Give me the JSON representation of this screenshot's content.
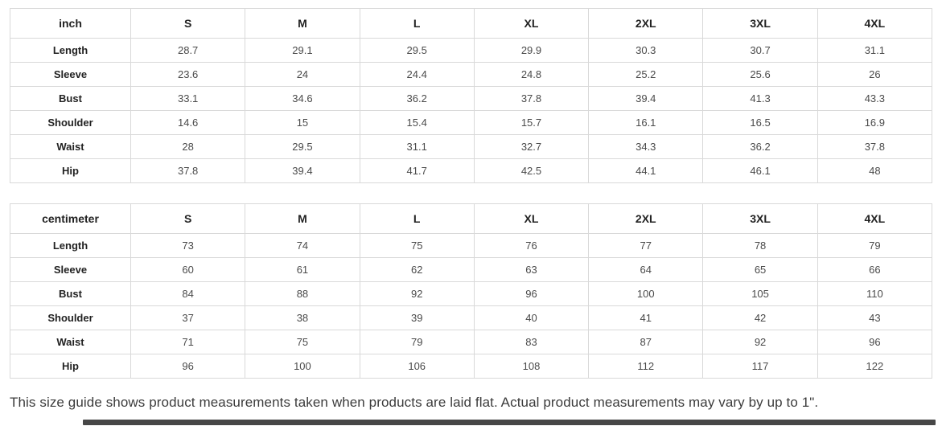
{
  "tables": [
    {
      "unit_label": "inch",
      "size_headers": [
        "S",
        "M",
        "L",
        "XL",
        "2XL",
        "3XL",
        "4XL"
      ],
      "rows": [
        {
          "label": "Length",
          "values": [
            "28.7",
            "29.1",
            "29.5",
            "29.9",
            "30.3",
            "30.7",
            "31.1"
          ]
        },
        {
          "label": "Sleeve",
          "values": [
            "23.6",
            "24",
            "24.4",
            "24.8",
            "25.2",
            "25.6",
            "26"
          ]
        },
        {
          "label": "Bust",
          "values": [
            "33.1",
            "34.6",
            "36.2",
            "37.8",
            "39.4",
            "41.3",
            "43.3"
          ]
        },
        {
          "label": "Shoulder",
          "values": [
            "14.6",
            "15",
            "15.4",
            "15.7",
            "16.1",
            "16.5",
            "16.9"
          ]
        },
        {
          "label": "Waist",
          "values": [
            "28",
            "29.5",
            "31.1",
            "32.7",
            "34.3",
            "36.2",
            "37.8"
          ]
        },
        {
          "label": "Hip",
          "values": [
            "37.8",
            "39.4",
            "41.7",
            "42.5",
            "44.1",
            "46.1",
            "48"
          ]
        }
      ]
    },
    {
      "unit_label": "centimeter",
      "size_headers": [
        "S",
        "M",
        "L",
        "XL",
        "2XL",
        "3XL",
        "4XL"
      ],
      "rows": [
        {
          "label": "Length",
          "values": [
            "73",
            "74",
            "75",
            "76",
            "77",
            "78",
            "79"
          ]
        },
        {
          "label": "Sleeve",
          "values": [
            "60",
            "61",
            "62",
            "63",
            "64",
            "65",
            "66"
          ]
        },
        {
          "label": "Bust",
          "values": [
            "84",
            "88",
            "92",
            "96",
            "100",
            "105",
            "110"
          ]
        },
        {
          "label": "Shoulder",
          "values": [
            "37",
            "38",
            "39",
            "40",
            "41",
            "42",
            "43"
          ]
        },
        {
          "label": "Waist",
          "values": [
            "71",
            "75",
            "79",
            "83",
            "87",
            "92",
            "96"
          ]
        },
        {
          "label": "Hip",
          "values": [
            "96",
            "100",
            "106",
            "108",
            "112",
            "117",
            "122"
          ]
        }
      ]
    }
  ],
  "footer": {
    "note": "This size guide shows product measurements taken when products are laid flat. Actual product measurements may vary by up to 1\"."
  },
  "colors": {
    "table_border": "#d9d9d9",
    "header_text": "#222222",
    "value_text": "#4a4a4a",
    "scrollbar": "#474747"
  }
}
